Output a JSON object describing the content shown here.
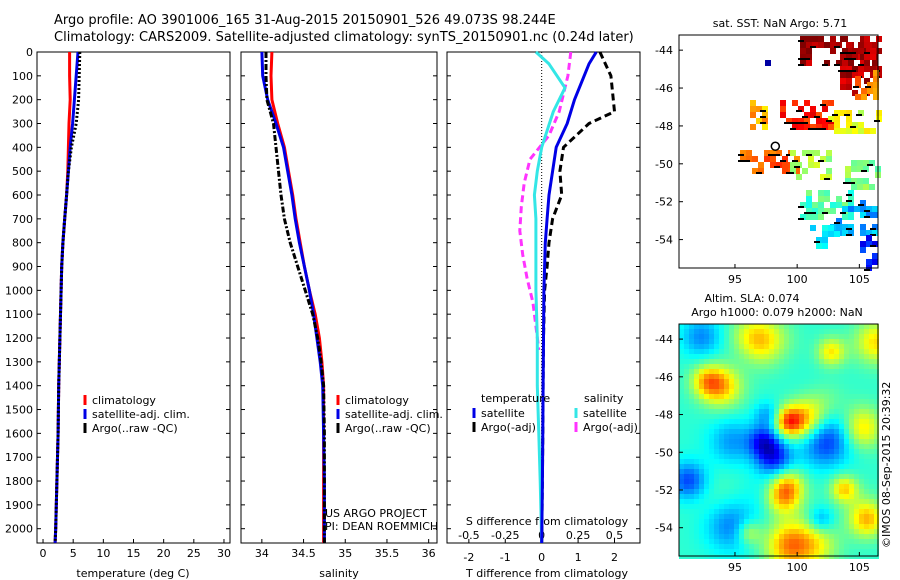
{
  "header": {
    "line1": "Argo profile: AO 3901006_165 31-Aug-2015 20150901_526 49.073S 98.244E",
    "line2": "Climatology: CARS2009. Satellite-adjusted climatology: synTS_20150901.nc (0.24d later)"
  },
  "credit": {
    "project": "US ARGO PROJECT",
    "pi": "PI: DEAN ROEMMICH"
  },
  "watermark": "©IMOS 08-Sep-2015 20:39:32",
  "colors": {
    "climatology": "#ff0000",
    "satellite": "#0000e6",
    "argo": "#000000",
    "s_satellite": "#33e6e6",
    "s_argo": "#ff33ff"
  },
  "chart_data": [
    {
      "id": "temperature",
      "type": "line",
      "xlabel": "temperature (deg C)",
      "ylabel": "",
      "xlim": [
        -1,
        31
      ],
      "ylim": [
        2060,
        0
      ],
      "x_ticks": [
        "0",
        "5",
        "10",
        "15",
        "20",
        "25",
        "30"
      ],
      "y_ticks": [
        "0",
        "100",
        "200",
        "300",
        "400",
        "500",
        "600",
        "700",
        "800",
        "900",
        "1000",
        "1100",
        "1200",
        "1300",
        "1400",
        "1500",
        "1600",
        "1700",
        "1800",
        "1900",
        "2000"
      ],
      "legend": [
        "climatology",
        "satellite-adj. clim.",
        "Argo(..raw -QC)"
      ],
      "series": [
        {
          "name": "climatology",
          "x": [
            4.4,
            4.4,
            4.5,
            4.3,
            4.2,
            4.1,
            3.9,
            3.6,
            3.3,
            3.1,
            3.0,
            2.8,
            2.6,
            2.5,
            2.3,
            2.2,
            2.1,
            2.0
          ],
          "y": [
            0,
            100,
            200,
            300,
            400,
            500,
            600,
            700,
            800,
            900,
            1000,
            1200,
            1400,
            1600,
            1800,
            1900,
            2000,
            2060
          ]
        },
        {
          "name": "satellite-adj. clim.",
          "x": [
            5.8,
            5.5,
            5.2,
            4.9,
            4.5,
            4.2,
            3.9,
            3.6,
            3.3,
            3.1,
            3.0,
            2.8,
            2.6,
            2.5,
            2.3,
            2.2,
            2.1,
            2.0
          ],
          "y": [
            0,
            100,
            200,
            300,
            400,
            500,
            600,
            700,
            800,
            900,
            1000,
            1200,
            1400,
            1600,
            1800,
            1900,
            2000,
            2060
          ]
        },
        {
          "name": "Argo(..raw -QC)",
          "x": [
            6.1,
            6.0,
            5.9,
            5.5,
            4.7,
            4.2,
            3.9,
            3.6,
            3.3,
            3.1,
            3.0,
            2.8,
            2.6,
            2.5,
            2.3,
            2.2,
            2.1,
            2.0
          ],
          "y": [
            0,
            100,
            200,
            300,
            400,
            500,
            600,
            700,
            800,
            900,
            1000,
            1200,
            1400,
            1600,
            1800,
            1900,
            2000,
            2060
          ]
        }
      ]
    },
    {
      "id": "salinity",
      "type": "line",
      "xlabel": "salinity",
      "ylabel": "",
      "xlim": [
        33.75,
        36.1
      ],
      "ylim": [
        2060,
        0
      ],
      "x_ticks": [
        "34",
        "34.5",
        "35",
        "35.5",
        "36"
      ],
      "legend": [
        "climatology",
        "satellite-adj. clim.",
        "Argo(..raw -QC)"
      ],
      "series": [
        {
          "name": "climatology",
          "x": [
            34.12,
            34.11,
            34.12,
            34.19,
            34.27,
            34.32,
            34.37,
            34.41,
            34.46,
            34.51,
            34.57,
            34.64,
            34.69,
            34.72,
            34.74,
            34.74,
            34.74,
            34.74
          ],
          "y": [
            0,
            100,
            200,
            300,
            400,
            500,
            600,
            700,
            800,
            900,
            1000,
            1100,
            1200,
            1300,
            1400,
            1600,
            1800,
            2060
          ]
        },
        {
          "name": "satellite-adj. clim.",
          "x": [
            34.0,
            34.01,
            34.07,
            34.17,
            34.26,
            34.31,
            34.36,
            34.4,
            34.45,
            34.51,
            34.57,
            34.62,
            34.66,
            34.7,
            34.73,
            34.74,
            34.75,
            34.75
          ],
          "y": [
            0,
            100,
            200,
            300,
            400,
            500,
            600,
            700,
            800,
            900,
            1000,
            1100,
            1200,
            1300,
            1400,
            1600,
            1800,
            2060
          ]
        },
        {
          "name": "Argo(..raw -QC)",
          "x": [
            34.05,
            34.05,
            34.06,
            34.14,
            34.17,
            34.2,
            34.23,
            34.27,
            34.34,
            34.43,
            34.52,
            34.61,
            34.67,
            34.71,
            34.74,
            34.75,
            34.75,
            34.75
          ],
          "y": [
            0,
            100,
            200,
            300,
            400,
            500,
            600,
            700,
            800,
            900,
            1000,
            1100,
            1200,
            1300,
            1400,
            1600,
            1800,
            2060
          ]
        }
      ]
    },
    {
      "id": "difference",
      "type": "line",
      "xlabel": "T difference from climatology",
      "x2label": "S difference from climatology",
      "xlim": [
        -2.6,
        2.7
      ],
      "ylim": [
        2060,
        0
      ],
      "x_ticks": [
        "-2",
        "-1",
        "0",
        "1",
        "2"
      ],
      "x2_ticks": [
        "-0.5",
        "-0.25",
        "0",
        "0.25",
        "0.5"
      ],
      "legend_groups": [
        "temperature",
        "salinity"
      ],
      "legend": [
        "satellite",
        "Argo(-adj)",
        "satellite",
        "Argo(-adj)"
      ],
      "series": [
        {
          "name": "T satellite",
          "x": [
            1.5,
            1.3,
            0.9,
            0.7,
            0.4,
            0.3,
            0.2,
            0.15,
            0.1,
            0.08,
            0.06,
            0.05,
            0.04,
            0.03,
            0.02,
            0.0
          ],
          "y": [
            0,
            50,
            200,
            300,
            400,
            500,
            600,
            700,
            800,
            900,
            1000,
            1200,
            1400,
            1600,
            1800,
            2060
          ]
        },
        {
          "name": "T Argo(-adj)",
          "x": [
            1.6,
            1.9,
            2.0,
            1.3,
            0.6,
            0.5,
            0.55,
            0.3,
            0.2,
            0.15,
            0.08,
            0.05,
            0.04,
            0.03,
            0.02,
            0.0
          ],
          "y": [
            0,
            100,
            250,
            300,
            400,
            500,
            600,
            700,
            800,
            900,
            1000,
            1200,
            1400,
            1600,
            1800,
            2060
          ]
        },
        {
          "name": "S satellite",
          "x": [
            -0.04,
            0.05,
            0.16,
            0.08,
            0.0,
            -0.03,
            -0.05,
            -0.04,
            -0.04,
            -0.04,
            -0.03,
            -0.03,
            -0.02,
            -0.01,
            0.0
          ],
          "y": [
            0,
            50,
            150,
            250,
            400,
            500,
            600,
            700,
            800,
            1000,
            1200,
            1400,
            1600,
            1800,
            2060
          ]
        },
        {
          "name": "S Argo(-adj)",
          "x": [
            0.2,
            0.18,
            0.12,
            0.05,
            -0.08,
            -0.12,
            -0.14,
            -0.15,
            -0.13,
            -0.1,
            -0.06,
            -0.04,
            -0.02
          ],
          "y": [
            0,
            100,
            250,
            350,
            450,
            550,
            650,
            750,
            850,
            950,
            1050,
            1150,
            1250
          ]
        }
      ]
    },
    {
      "id": "sst_map",
      "type": "heatmap",
      "title": "sat. SST: NaN Argo: 5.71",
      "x_ticks": [
        "95",
        "100",
        "105"
      ],
      "y_ticks": [
        "-44",
        "-46",
        "-48",
        "-50",
        "-52",
        "-54"
      ],
      "xlim": [
        90.5,
        106.5
      ],
      "ylim": [
        -55.5,
        -43.2
      ]
    },
    {
      "id": "sla_map",
      "type": "heatmap",
      "title": "Altim. SLA: 0.074",
      "subtitle": "Argo h1000: 0.079 h2000: NaN",
      "x_ticks": [
        "95",
        "100",
        "105"
      ],
      "y_ticks": [
        "-44",
        "-46",
        "-48",
        "-50",
        "-52",
        "-54"
      ],
      "xlim": [
        90.5,
        106.5
      ],
      "ylim": [
        -55.5,
        -43.2
      ]
    }
  ]
}
